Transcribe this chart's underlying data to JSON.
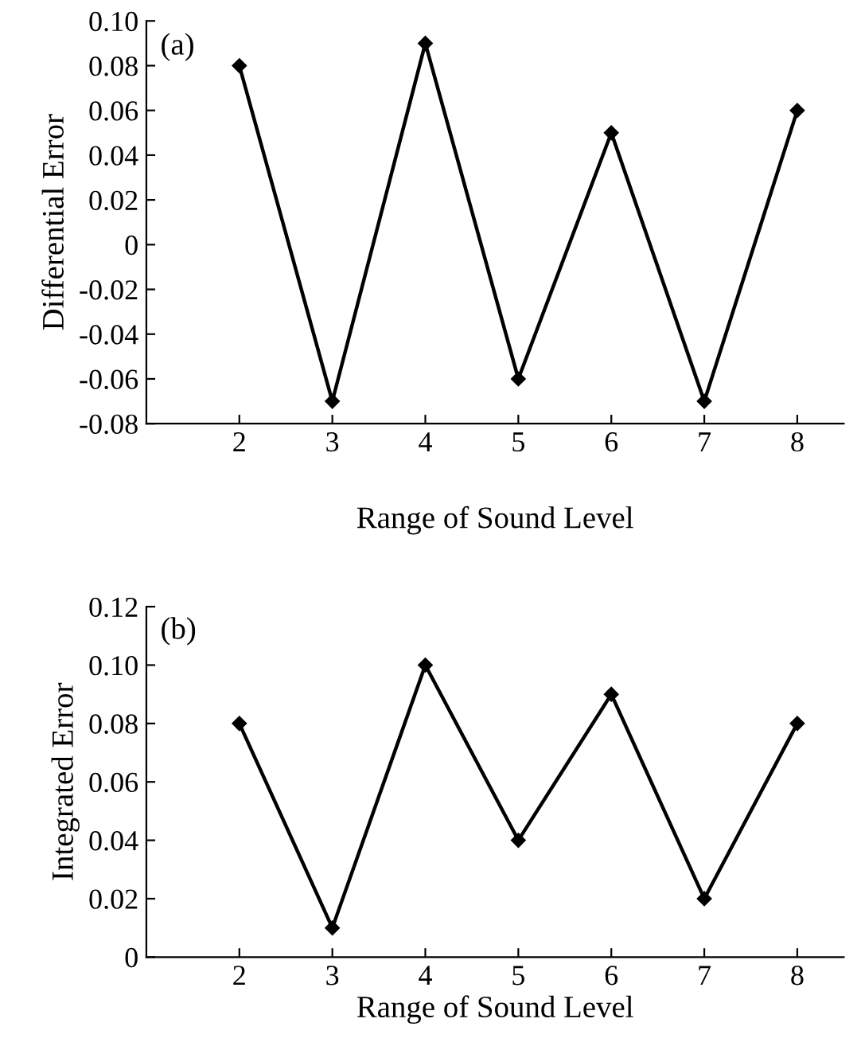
{
  "chart_data": [
    {
      "type": "line",
      "ylabel": "Differential Error",
      "xlabel": "Range of Sound Level",
      "annotations": [
        "(a)"
      ],
      "x": [
        2,
        3,
        4,
        5,
        6,
        7,
        8
      ],
      "series": [
        {
          "color": "#000000",
          "values": [
            0.08,
            -0.07,
            0.09,
            -0.06,
            0.05,
            -0.07,
            0.06
          ]
        }
      ],
      "xlim": [
        1,
        8.5
      ],
      "xticks": [
        2,
        3,
        4,
        5,
        6,
        7,
        8
      ],
      "ylim": [
        -0.08,
        0.1
      ],
      "yticks": [
        {
          "value": -0.08,
          "label": "-0.08"
        },
        {
          "value": -0.06,
          "label": "-0.06"
        },
        {
          "value": -0.04,
          "label": "-0.04"
        },
        {
          "value": -0.02,
          "label": "-0.02"
        },
        0,
        {
          "value": 0.02,
          "label": "0.02"
        },
        {
          "value": 0.04,
          "label": "0.04"
        },
        {
          "value": 0.06,
          "label": "0.06"
        },
        {
          "value": 0.08,
          "label": "0.08"
        },
        {
          "value": 0.1,
          "label": "0.10"
        }
      ],
      "marker": "diamond",
      "line_style": "solid",
      "grid": false,
      "legend": false
    },
    {
      "type": "line",
      "ylabel": "Integrated Error",
      "xlabel": "Range of Sound Level",
      "annotations": [
        "(b)"
      ],
      "x": [
        2,
        3,
        4,
        5,
        6,
        7,
        8
      ],
      "series": [
        {
          "color": "#000000",
          "values": [
            0.08,
            0.01,
            0.1,
            0.04,
            0.09,
            0.02,
            0.08
          ]
        }
      ],
      "xlim": [
        1,
        8.5
      ],
      "xticks": [
        2,
        3,
        4,
        5,
        6,
        7,
        8
      ],
      "ylim": [
        0,
        0.12
      ],
      "yticks": [
        0,
        {
          "value": 0.02,
          "label": "0.02"
        },
        {
          "value": 0.04,
          "label": "0.04"
        },
        {
          "value": 0.06,
          "label": "0.06"
        },
        {
          "value": 0.08,
          "label": "0.08"
        },
        {
          "value": 0.1,
          "label": "0.10"
        },
        {
          "value": 0.12,
          "label": "0.12"
        }
      ],
      "marker": "diamond",
      "line_style": "solid",
      "grid": false,
      "legend": false
    }
  ]
}
